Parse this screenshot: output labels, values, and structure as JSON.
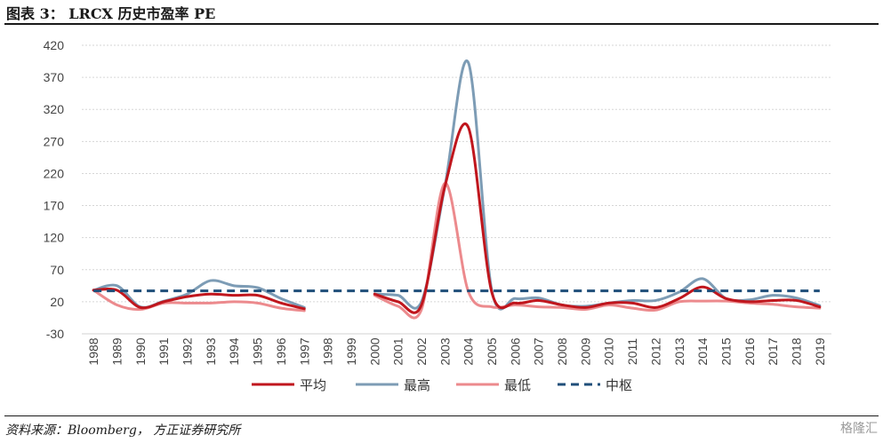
{
  "figure": {
    "title": "图表 3： LRCX 历史市盈率 PE",
    "source": "资料来源：Bloomberg， 方正证券研究所",
    "watermark": "格隆汇"
  },
  "chart_data": {
    "type": "line",
    "x": [
      1988,
      1989,
      1990,
      1991,
      1992,
      1993,
      1994,
      1995,
      1996,
      1997,
      1998,
      1999,
      2000,
      2001,
      2002,
      2003,
      2004,
      2005,
      2006,
      2007,
      2008,
      2009,
      2010,
      2011,
      2012,
      2013,
      2014,
      2015,
      2016,
      2017,
      2018,
      2019
    ],
    "ylim": [
      -30,
      420
    ],
    "yticks": [
      -30,
      20,
      70,
      120,
      170,
      220,
      270,
      320,
      370,
      420
    ],
    "grid": true,
    "legend_position": "bottom",
    "series": [
      {
        "name": "平均",
        "color": "#c0161d",
        "style": "solid",
        "values": [
          38,
          38,
          11,
          20,
          28,
          32,
          30,
          30,
          18,
          9,
          null,
          null,
          32,
          20,
          15,
          200,
          292,
          35,
          18,
          22,
          15,
          11,
          18,
          18,
          11,
          25,
          43,
          25,
          20,
          22,
          22,
          12
        ]
      },
      {
        "name": "最高",
        "color": "#7d9cb5",
        "style": "solid",
        "values": [
          38,
          45,
          12,
          21,
          32,
          53,
          45,
          42,
          25,
          11,
          null,
          null,
          32,
          30,
          20,
          200,
          393,
          38,
          25,
          26,
          15,
          13,
          18,
          22,
          22,
          35,
          56,
          25,
          23,
          30,
          26,
          14
        ]
      },
      {
        "name": "最低",
        "color": "#ec8a8d",
        "style": "solid",
        "values": [
          38,
          15,
          8,
          18,
          18,
          18,
          20,
          18,
          10,
          6,
          null,
          null,
          30,
          13,
          8,
          205,
          36,
          12,
          15,
          12,
          11,
          8,
          15,
          10,
          7,
          20,
          21,
          21,
          18,
          16,
          12,
          10
        ]
      },
      {
        "name": "中枢",
        "color": "#1f4e79",
        "style": "dashed",
        "values": [
          37,
          37,
          37,
          37,
          37,
          37,
          37,
          37,
          37,
          37,
          37,
          37,
          37,
          37,
          37,
          37,
          37,
          37,
          37,
          37,
          37,
          37,
          37,
          37,
          37,
          37,
          37,
          37,
          37,
          37,
          37,
          37
        ]
      }
    ]
  }
}
